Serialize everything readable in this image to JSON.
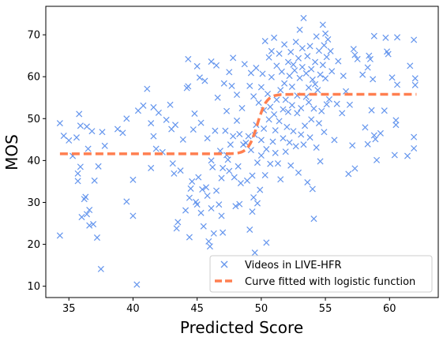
{
  "chart_data": {
    "type": "scatter",
    "xlabel": "Predicted Score",
    "ylabel": "MOS",
    "xlim": [
      33.2,
      63.8
    ],
    "ylim": [
      7.3,
      76.8
    ],
    "xticks": [
      35,
      40,
      45,
      50,
      55,
      60
    ],
    "yticks": [
      10,
      20,
      30,
      40,
      50,
      60,
      70
    ],
    "grid": false,
    "legend_position": "lower-right",
    "colors": {
      "scatter": "#6495ED",
      "curve": "#FF7F50"
    },
    "series": [
      {
        "name": "Videos in LIVE-HFR",
        "marker": "x",
        "points": [
          [
            34.3,
            22.1
          ],
          [
            34.3,
            48.9
          ],
          [
            34.6,
            45.9
          ],
          [
            35,
            44.8
          ],
          [
            35.3,
            41.1
          ],
          [
            35.6,
            45.5
          ],
          [
            35.7,
            36.9
          ],
          [
            35.7,
            35.1
          ],
          [
            35.8,
            51.1
          ],
          [
            35.9,
            48.3
          ],
          [
            35.9,
            38.5
          ],
          [
            36,
            26.5
          ],
          [
            36.2,
            30.8
          ],
          [
            36.3,
            31.3
          ],
          [
            36.4,
            27.2
          ],
          [
            36.4,
            48.1
          ],
          [
            36.5,
            42.8
          ],
          [
            36.6,
            24.5
          ],
          [
            36.6,
            28.2
          ],
          [
            36.8,
            47
          ],
          [
            36.9,
            24.8
          ],
          [
            37,
            35.2
          ],
          [
            37.2,
            21.6
          ],
          [
            37.3,
            38.6
          ],
          [
            37.5,
            14.1
          ],
          [
            37.6,
            46.8
          ],
          [
            37.8,
            43.5
          ],
          [
            38.8,
            47.5
          ],
          [
            39.2,
            46.6
          ],
          [
            39.5,
            30.2
          ],
          [
            39.5,
            50
          ],
          [
            40,
            35.4
          ],
          [
            40,
            26.8
          ],
          [
            40.3,
            10.4
          ],
          [
            40.4,
            51.9
          ],
          [
            40.8,
            53.1
          ],
          [
            41.1,
            57.1
          ],
          [
            41.4,
            38.2
          ],
          [
            41.4,
            48.9
          ],
          [
            41.6,
            52.7
          ],
          [
            41.6,
            45.8
          ],
          [
            41.8,
            42.8
          ],
          [
            42,
            51.4
          ],
          [
            42.3,
            42
          ],
          [
            42.6,
            49.7
          ],
          [
            42.9,
            53.3
          ],
          [
            43,
            47.5
          ],
          [
            43.1,
            39.3
          ],
          [
            43.2,
            36.9
          ],
          [
            43.3,
            48.5
          ],
          [
            43.4,
            23.8
          ],
          [
            43.5,
            25.3
          ],
          [
            43.7,
            37.6
          ],
          [
            43.9,
            45
          ],
          [
            44.1,
            28.1
          ],
          [
            44.2,
            57.3
          ],
          [
            44.3,
            64.2
          ],
          [
            44.3,
            57.7
          ],
          [
            44.4,
            31.1
          ],
          [
            44.4,
            21.7
          ],
          [
            44.5,
            33.3
          ],
          [
            44.6,
            35
          ],
          [
            44.7,
            47.4
          ],
          [
            44.8,
            51.2
          ],
          [
            44.9,
            30.1
          ],
          [
            45,
            62.5
          ],
          [
            45,
            29.5
          ],
          [
            45.1,
            36
          ],
          [
            45.2,
            59.8
          ],
          [
            45.3,
            49
          ],
          [
            45.3,
            27.5
          ],
          [
            45.4,
            33.1
          ],
          [
            45.5,
            24.3
          ],
          [
            45.6,
            59
          ],
          [
            45.7,
            33.6
          ],
          [
            45.8,
            31.6
          ],
          [
            45.8,
            45.3
          ],
          [
            45.9,
            20.7
          ],
          [
            46,
            19.5
          ],
          [
            46.1,
            63.6
          ],
          [
            46.1,
            40
          ],
          [
            46.1,
            28.6
          ],
          [
            46.2,
            38.4
          ],
          [
            46.3,
            22.6
          ],
          [
            46.4,
            47.1
          ],
          [
            46.5,
            62.7
          ],
          [
            46.5,
            32.8
          ],
          [
            46.6,
            55
          ],
          [
            46.7,
            29.5
          ],
          [
            46.8,
            42.3
          ],
          [
            46.9,
            35.8
          ],
          [
            46.9,
            26.8
          ],
          [
            47,
            38.2
          ],
          [
            47.1,
            58.4
          ],
          [
            47,
            22.8
          ],
          [
            47.2,
            47.1
          ],
          [
            47.3,
            41.3
          ],
          [
            47.3,
            51.8
          ],
          [
            47.4,
            40.2
          ],
          [
            47.5,
            61.1
          ],
          [
            47.5,
            37.5
          ],
          [
            47.6,
            43.8
          ],
          [
            47.7,
            57.8
          ],
          [
            47.8,
            64.5
          ],
          [
            47.8,
            45.8
          ],
          [
            47.9,
            36
          ],
          [
            48,
            29.1
          ],
          [
            48.1,
            49.5
          ],
          [
            48.1,
            55.7
          ],
          [
            48.2,
            38.6
          ],
          [
            48.3,
            46.3
          ],
          [
            48.3,
            29.6
          ],
          [
            48.4,
            34.6
          ],
          [
            48.5,
            52.5
          ],
          [
            48.6,
            43.8
          ],
          [
            48.7,
            63
          ],
          [
            48.8,
            44.2
          ],
          [
            48.9,
            35.2
          ],
          [
            49,
            45.8
          ],
          [
            49.1,
            23.5
          ],
          [
            49.1,
            57.8
          ],
          [
            49.2,
            42.5
          ],
          [
            49.2,
            60.9
          ],
          [
            49.3,
            36.4
          ],
          [
            49.3,
            27.8
          ],
          [
            49.4,
            55.3
          ],
          [
            49.4,
            31.2
          ],
          [
            49.5,
            18
          ],
          [
            49.5,
            46.1
          ],
          [
            49.6,
            62.1
          ],
          [
            49.6,
            48.5
          ],
          [
            49.7,
            29.8
          ],
          [
            49.7,
            39.5
          ],
          [
            49.8,
            53.8
          ],
          [
            49.9,
            33
          ],
          [
            50,
            57.5
          ],
          [
            50,
            44.9
          ],
          [
            50,
            41.2
          ],
          [
            50.1,
            60.7
          ],
          [
            50.2,
            52
          ],
          [
            50.2,
            47.6
          ],
          [
            50.3,
            36.5
          ],
          [
            50.3,
            68.5
          ],
          [
            50.4,
            42.7
          ],
          [
            50.4,
            20.4
          ],
          [
            50.5,
            55.9
          ],
          [
            50.6,
            49.8
          ],
          [
            50.6,
            64.6
          ],
          [
            50.7,
            39.2
          ],
          [
            50.7,
            52.8
          ],
          [
            50.8,
            66.1
          ],
          [
            50.8,
            59.9
          ],
          [
            50.9,
            44.5
          ],
          [
            51,
            51
          ],
          [
            51,
            69.3
          ],
          [
            51.1,
            47.2
          ],
          [
            51.1,
            41.8
          ],
          [
            51.2,
            54.5
          ],
          [
            51.2,
            62.6
          ],
          [
            51.3,
            39.3
          ],
          [
            51.4,
            49.4
          ],
          [
            51.4,
            65.5
          ],
          [
            51.5,
            56.8
          ],
          [
            51.5,
            35.5
          ],
          [
            51.6,
            61.2
          ],
          [
            51.7,
            52.2
          ],
          [
            51.7,
            45.3
          ],
          [
            51.8,
            58.4
          ],
          [
            51.8,
            67.7
          ],
          [
            51.9,
            42.1
          ],
          [
            51.9,
            54.5
          ],
          [
            52,
            48
          ],
          [
            52.1,
            63.5
          ],
          [
            52.1,
            51.6
          ],
          [
            52.2,
            60.2
          ],
          [
            52.2,
            44.3
          ],
          [
            52.3,
            65.9
          ],
          [
            52.3,
            38.8
          ],
          [
            52.4,
            57.6
          ],
          [
            52.4,
            53.2
          ],
          [
            52.5,
            62.9
          ],
          [
            52.5,
            47
          ],
          [
            52.6,
            61.5
          ],
          [
            52.7,
            68.3
          ],
          [
            52.7,
            43.4
          ],
          [
            52.8,
            55.5
          ],
          [
            52.8,
            51.3
          ],
          [
            52.9,
            64.4
          ],
          [
            52.9,
            37.1
          ],
          [
            53,
            59.7
          ],
          [
            53,
            71.2
          ],
          [
            53.1,
            46.2
          ],
          [
            53.1,
            52.5
          ],
          [
            53.2,
            66.8
          ],
          [
            53.2,
            62.3
          ],
          [
            53.3,
            74
          ],
          [
            53.3,
            43.8
          ],
          [
            53.4,
            48.3
          ],
          [
            53.5,
            55.2
          ],
          [
            53.5,
            60.8
          ],
          [
            53.6,
            64.9
          ],
          [
            53.6,
            34.8
          ],
          [
            53.7,
            53.9
          ],
          [
            53.7,
            57.4
          ],
          [
            53.8,
            67.3
          ],
          [
            53.8,
            45.5
          ],
          [
            53.9,
            61.8
          ],
          [
            53.9,
            49.8
          ],
          [
            54,
            59.3
          ],
          [
            54,
            33.2
          ],
          [
            54.1,
            52.4
          ],
          [
            54.1,
            26.1
          ],
          [
            54.2,
            63.5
          ],
          [
            54.2,
            58.2
          ],
          [
            54.3,
            69.6
          ],
          [
            54.3,
            43.1
          ],
          [
            54.4,
            56.8
          ],
          [
            54.5,
            48.9
          ],
          [
            54.5,
            66.2
          ],
          [
            54.6,
            60.5
          ],
          [
            54.6,
            39.8
          ],
          [
            54.7,
            51.8
          ],
          [
            54.8,
            72.4
          ],
          [
            54.8,
            62.8
          ],
          [
            54.9,
            46.8
          ],
          [
            54.9,
            67.5
          ],
          [
            55,
            70.3
          ],
          [
            55,
            59.6
          ],
          [
            55.1,
            53.4
          ],
          [
            55.1,
            64.7
          ],
          [
            55.2,
            68.9
          ],
          [
            55.3,
            54.6
          ],
          [
            55.4,
            66.1
          ],
          [
            55.5,
            61.3
          ],
          [
            55.7,
            44.9
          ],
          [
            55.9,
            53.5
          ],
          [
            56,
            63.7
          ],
          [
            56.3,
            51.3
          ],
          [
            56.4,
            60.2
          ],
          [
            56.6,
            56.5
          ],
          [
            56.8,
            36.8
          ],
          [
            56.9,
            53.3
          ],
          [
            57.1,
            43.6
          ],
          [
            57.2,
            66.6
          ],
          [
            57.3,
            65.2
          ],
          [
            57.3,
            38.1
          ],
          [
            57.5,
            64.2
          ],
          [
            57.9,
            60.5
          ],
          [
            58.1,
            47.9
          ],
          [
            58.3,
            43.9
          ],
          [
            58.3,
            62.2
          ],
          [
            58.4,
            65
          ],
          [
            58.5,
            64.2
          ],
          [
            58.6,
            52
          ],
          [
            58.7,
            59.4
          ],
          [
            58.8,
            46
          ],
          [
            58.8,
            69.7
          ],
          [
            58.9,
            45.1
          ],
          [
            59,
            40.1
          ],
          [
            59.3,
            46.5
          ],
          [
            59.6,
            51.9
          ],
          [
            59.7,
            69.3
          ],
          [
            59.8,
            66
          ],
          [
            59.9,
            65.4
          ],
          [
            60.2,
            59.8
          ],
          [
            60.4,
            41.3
          ],
          [
            60.5,
            48.5
          ],
          [
            60.5,
            49.6
          ],
          [
            60.6,
            58.1
          ],
          [
            60.6,
            69.4
          ],
          [
            61.4,
            41.1
          ],
          [
            61.6,
            62.6
          ],
          [
            61.9,
            68.8
          ],
          [
            61.9,
            45.6
          ],
          [
            61.9,
            42.9
          ],
          [
            62,
            59.6
          ],
          [
            62,
            58
          ]
        ]
      },
      {
        "name": "Curve fitted with logistic function",
        "style": "dashed-line",
        "logistic": {
          "low": 41.6,
          "high": 55.8,
          "midpoint": 49.7,
          "slope": 2.8
        },
        "x_range": [
          34.3,
          62.1
        ]
      }
    ]
  }
}
